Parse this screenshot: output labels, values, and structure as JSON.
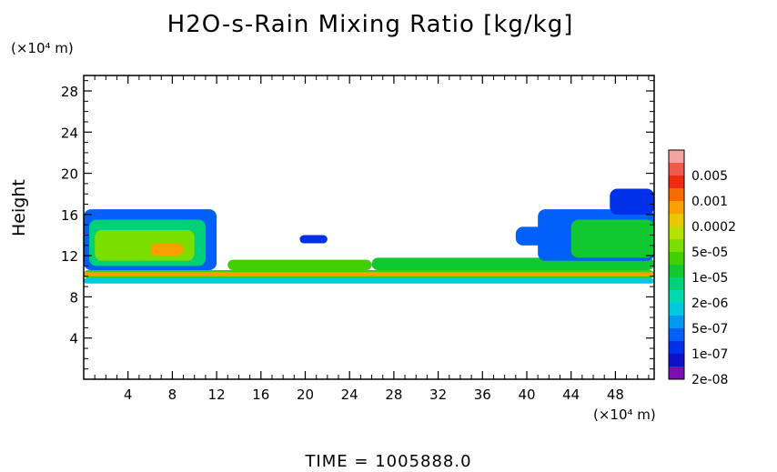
{
  "chart_data": {
    "type": "heatmap",
    "title": "H2O-s-Rain Mixing Ratio [kg/kg]",
    "ylabel": "Height",
    "yunit": "(×10⁴ m)",
    "xunit": "(×10⁴ m)",
    "xlim": [
      0,
      51.5
    ],
    "ylim": [
      0,
      29.5
    ],
    "xticks": [
      4,
      8,
      12,
      16,
      20,
      24,
      28,
      32,
      36,
      40,
      44,
      48
    ],
    "yticks": [
      4,
      8,
      12,
      16,
      20,
      24,
      28
    ],
    "colorbar": [
      {
        "label": "",
        "color": "#f4a4a0"
      },
      {
        "label": "0.005",
        "color": "#f05a4a"
      },
      {
        "label": "",
        "color": "#ee2a10"
      },
      {
        "label": "0.001",
        "color": "#f66a00"
      },
      {
        "label": "",
        "color": "#f9a000"
      },
      {
        "label": "0.0002",
        "color": "#e8c800"
      },
      {
        "label": "",
        "color": "#b8e000"
      },
      {
        "label": "5e-05",
        "color": "#7ade00"
      },
      {
        "label": "",
        "color": "#40d000"
      },
      {
        "label": "1e-05",
        "color": "#10c830"
      },
      {
        "label": "",
        "color": "#00d078"
      },
      {
        "label": "2e-06",
        "color": "#00d8b0"
      },
      {
        "label": "",
        "color": "#00c8e0"
      },
      {
        "label": "5e-07",
        "color": "#0098f0"
      },
      {
        "label": "",
        "color": "#0060f8"
      },
      {
        "label": "1e-07",
        "color": "#0030e8"
      },
      {
        "label": "",
        "color": "#1010c8"
      },
      {
        "label": "2e-08",
        "color": "#7a10b0"
      }
    ],
    "fields": [
      {
        "x": [
          0,
          51.5
        ],
        "y": [
          9.3,
          9.8
        ],
        "level": 12
      },
      {
        "x": [
          0,
          51.5
        ],
        "y": [
          9.8,
          10.6
        ],
        "level": 8
      },
      {
        "x": [
          0,
          51.5
        ],
        "y": [
          10.0,
          10.4
        ],
        "level": 4
      },
      {
        "x": [
          0,
          12
        ],
        "y": [
          10.6,
          16.5
        ],
        "level": 14
      },
      {
        "x": [
          0.5,
          11
        ],
        "y": [
          11.0,
          15.5
        ],
        "level": 10
      },
      {
        "x": [
          1,
          10
        ],
        "y": [
          11.5,
          14.5
        ],
        "level": 7
      },
      {
        "x": [
          6,
          9
        ],
        "y": [
          12.0,
          13.2
        ],
        "level": 4
      },
      {
        "x": [
          13,
          26
        ],
        "y": [
          10.6,
          11.6
        ],
        "level": 8
      },
      {
        "x": [
          26,
          51.5
        ],
        "y": [
          10.6,
          11.8
        ],
        "level": 9
      },
      {
        "x": [
          19.5,
          22
        ],
        "y": [
          13.2,
          14.0
        ],
        "level": 15
      },
      {
        "x": [
          39,
          43
        ],
        "y": [
          13.0,
          14.8
        ],
        "level": 14
      },
      {
        "x": [
          41,
          51.5
        ],
        "y": [
          11.5,
          16.5
        ],
        "level": 14
      },
      {
        "x": [
          44,
          51.5
        ],
        "y": [
          11.8,
          15.5
        ],
        "level": 9
      },
      {
        "x": [
          47.5,
          51.5
        ],
        "y": [
          16.0,
          18.5
        ],
        "level": 15
      }
    ]
  },
  "footer": {
    "time_label": "TIME",
    "time_equals": "=",
    "time_value": "1005888.0"
  }
}
